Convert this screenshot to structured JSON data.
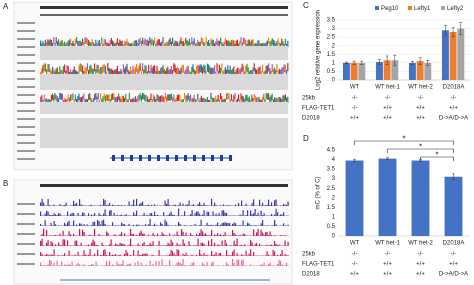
{
  "panels": [
    {
      "label": "A"
    },
    {
      "label": "B"
    }
  ],
  "chart_data": [
    {
      "type": "grouped-bar",
      "panel": "C",
      "y_label": "Log2 relative gene expression",
      "categories": [
        "WT",
        "WT het-1",
        "WT het-2",
        "D2018A"
      ],
      "series": [
        {
          "name": "Peg10",
          "color": "#4472c4",
          "values": [
            1,
            1.05,
            1.0,
            2.9
          ],
          "errors": [
            0.05,
            0.15,
            0.1,
            0.3
          ]
        },
        {
          "name": "Lefty1",
          "color": "#ed7d31",
          "values": [
            1,
            1.15,
            1.1,
            2.8
          ],
          "errors": [
            0.1,
            0.25,
            0.2,
            0.25
          ]
        },
        {
          "name": "Lefty2",
          "color": "#a5a5a5",
          "values": [
            1,
            1.15,
            1.0,
            3.0
          ],
          "errors": [
            0.1,
            0.3,
            0.15,
            0.35
          ]
        }
      ],
      "ylim": [
        0,
        3.5
      ],
      "yticks": [
        0,
        0.5,
        1,
        1.5,
        2,
        2.5,
        3,
        3.5
      ],
      "legend": "top-right",
      "genotypes": {
        "row_labels": [
          "25kb",
          "FLAG-TET1",
          "D2018"
        ],
        "rows": [
          [
            "-/-",
            "-/-",
            "-/-",
            "-/-"
          ],
          [
            "-/-",
            "+/+",
            "+/+",
            "+/+"
          ],
          [
            "+/+",
            "+/+",
            "+/+",
            "D->A/D->A"
          ]
        ]
      }
    },
    {
      "type": "bar",
      "panel": "D",
      "y_label": "mC (% of C)",
      "categories": [
        "WT",
        "WT het-1",
        "WT het-2",
        "D2018A"
      ],
      "values": [
        3.95,
        4.05,
        3.95,
        3.1
      ],
      "errors": [
        0.05,
        0.05,
        0.05,
        0.15
      ],
      "color": "#4472c4",
      "ylim": [
        0,
        4.5
      ],
      "yticks": [
        0,
        0.5,
        1,
        1.5,
        2,
        2.5,
        3,
        3.5,
        4,
        4.5
      ],
      "annotations": [
        "*",
        "*",
        "*"
      ],
      "genotypes": {
        "row_labels": [
          "25kb",
          "FLAG-TET1",
          "D2018"
        ],
        "rows": [
          [
            "-/-",
            "-/-",
            "-/-",
            "-/-"
          ],
          [
            "-/-",
            "+/+",
            "+/+",
            "+/+"
          ],
          [
            "+/+",
            "+/+",
            "+/+",
            "D->A/D->A"
          ]
        ]
      }
    }
  ]
}
